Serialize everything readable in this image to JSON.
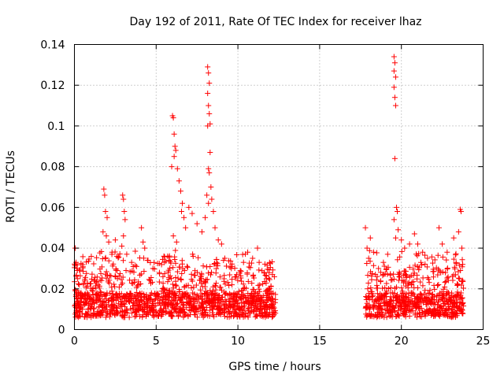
{
  "chart_data": {
    "type": "scatter",
    "title": "Day 192 of 2011, Rate Of TEC Index for receiver lhaz",
    "xlabel": "GPS time / hours",
    "ylabel": "ROTI / TECUs",
    "xlim": [
      0,
      25
    ],
    "ylim": [
      0,
      0.14
    ],
    "xticks": [
      0,
      5,
      10,
      15,
      20,
      25
    ],
    "yticks": [
      0,
      0.02,
      0.04,
      0.06,
      0.08,
      0.1,
      0.12,
      0.14
    ],
    "xtick_labels": [
      "0",
      "5",
      "10",
      "15",
      "20",
      "25"
    ],
    "ytick_labels": [
      "0",
      "0.02",
      "0.04",
      "0.06",
      "0.08",
      "0.1",
      "0.12",
      "0.14"
    ],
    "grid": true,
    "marker": "+",
    "color": "#ff0000",
    "data_gap_hours": [
      12.3,
      17.8
    ],
    "series": [
      {
        "points": [
          [
            0.05,
            0.04
          ],
          [
            0.1,
            0.033
          ],
          [
            0.15,
            0.03
          ],
          [
            0.2,
            0.025
          ],
          [
            0.3,
            0.022
          ],
          [
            1.8,
            0.069
          ],
          [
            1.85,
            0.066
          ],
          [
            1.9,
            0.058
          ],
          [
            2.0,
            0.055
          ],
          [
            1.75,
            0.048
          ],
          [
            1.95,
            0.046
          ],
          [
            2.1,
            0.043
          ],
          [
            2.3,
            0.038
          ],
          [
            2.5,
            0.044
          ],
          [
            2.6,
            0.036
          ],
          [
            2.95,
            0.066
          ],
          [
            3.0,
            0.064
          ],
          [
            3.05,
            0.058
          ],
          [
            3.1,
            0.054
          ],
          [
            3.0,
            0.046
          ],
          [
            2.9,
            0.041
          ],
          [
            3.2,
            0.037
          ],
          [
            3.5,
            0.033
          ],
          [
            3.8,
            0.031
          ],
          [
            4.1,
            0.05
          ],
          [
            4.2,
            0.043
          ],
          [
            4.3,
            0.04
          ],
          [
            4.5,
            0.034
          ],
          [
            4.8,
            0.03
          ],
          [
            5.2,
            0.028
          ],
          [
            5.5,
            0.033
          ],
          [
            5.7,
            0.036
          ],
          [
            6.0,
            0.105
          ],
          [
            6.05,
            0.104
          ],
          [
            6.1,
            0.096
          ],
          [
            6.15,
            0.09
          ],
          [
            6.2,
            0.088
          ],
          [
            6.1,
            0.085
          ],
          [
            5.95,
            0.08
          ],
          [
            6.3,
            0.079
          ],
          [
            6.4,
            0.073
          ],
          [
            6.5,
            0.068
          ],
          [
            6.6,
            0.062
          ],
          [
            6.55,
            0.058
          ],
          [
            6.7,
            0.055
          ],
          [
            6.8,
            0.05
          ],
          [
            7.0,
            0.06
          ],
          [
            7.2,
            0.057
          ],
          [
            7.5,
            0.052
          ],
          [
            7.8,
            0.048
          ],
          [
            6.05,
            0.046
          ],
          [
            6.25,
            0.043
          ],
          [
            8.15,
            0.129
          ],
          [
            8.2,
            0.126
          ],
          [
            8.25,
            0.121
          ],
          [
            8.15,
            0.116
          ],
          [
            8.2,
            0.11
          ],
          [
            8.25,
            0.106
          ],
          [
            8.3,
            0.101
          ],
          [
            8.15,
            0.1
          ],
          [
            8.3,
            0.087
          ],
          [
            8.2,
            0.079
          ],
          [
            8.25,
            0.077
          ],
          [
            8.35,
            0.07
          ],
          [
            8.1,
            0.066
          ],
          [
            8.2,
            0.062
          ],
          [
            8.4,
            0.064
          ],
          [
            8.5,
            0.058
          ],
          [
            8.0,
            0.055
          ],
          [
            8.6,
            0.05
          ],
          [
            8.8,
            0.044
          ],
          [
            9.0,
            0.042
          ],
          [
            9.2,
            0.035
          ],
          [
            9.6,
            0.03
          ],
          [
            9.9,
            0.026
          ],
          [
            10.6,
            0.038
          ],
          [
            10.9,
            0.035
          ],
          [
            11.2,
            0.04
          ],
          [
            11.3,
            0.033
          ],
          [
            11.6,
            0.028
          ],
          [
            11.9,
            0.02
          ],
          [
            12.1,
            0.012
          ],
          [
            17.8,
            0.05
          ],
          [
            17.9,
            0.04
          ],
          [
            18.0,
            0.035
          ],
          [
            18.1,
            0.045
          ],
          [
            18.3,
            0.038
          ],
          [
            18.6,
            0.03
          ],
          [
            18.9,
            0.033
          ],
          [
            19.55,
            0.134
          ],
          [
            19.6,
            0.131
          ],
          [
            19.55,
            0.127
          ],
          [
            19.65,
            0.124
          ],
          [
            19.55,
            0.119
          ],
          [
            19.6,
            0.114
          ],
          [
            19.65,
            0.11
          ],
          [
            19.6,
            0.084
          ],
          [
            19.7,
            0.06
          ],
          [
            19.75,
            0.058
          ],
          [
            19.55,
            0.054
          ],
          [
            19.8,
            0.049
          ],
          [
            19.65,
            0.045
          ],
          [
            20.0,
            0.044
          ],
          [
            20.2,
            0.04
          ],
          [
            20.5,
            0.042
          ],
          [
            20.8,
            0.047
          ],
          [
            21.0,
            0.042
          ],
          [
            21.3,
            0.038
          ],
          [
            21.6,
            0.035
          ],
          [
            22.3,
            0.05
          ],
          [
            22.5,
            0.042
          ],
          [
            22.8,
            0.038
          ],
          [
            23.2,
            0.045
          ],
          [
            23.5,
            0.048
          ],
          [
            23.6,
            0.059
          ],
          [
            23.65,
            0.058
          ],
          [
            23.7,
            0.04
          ],
          [
            23.75,
            0.032
          ]
        ]
      }
    ]
  }
}
